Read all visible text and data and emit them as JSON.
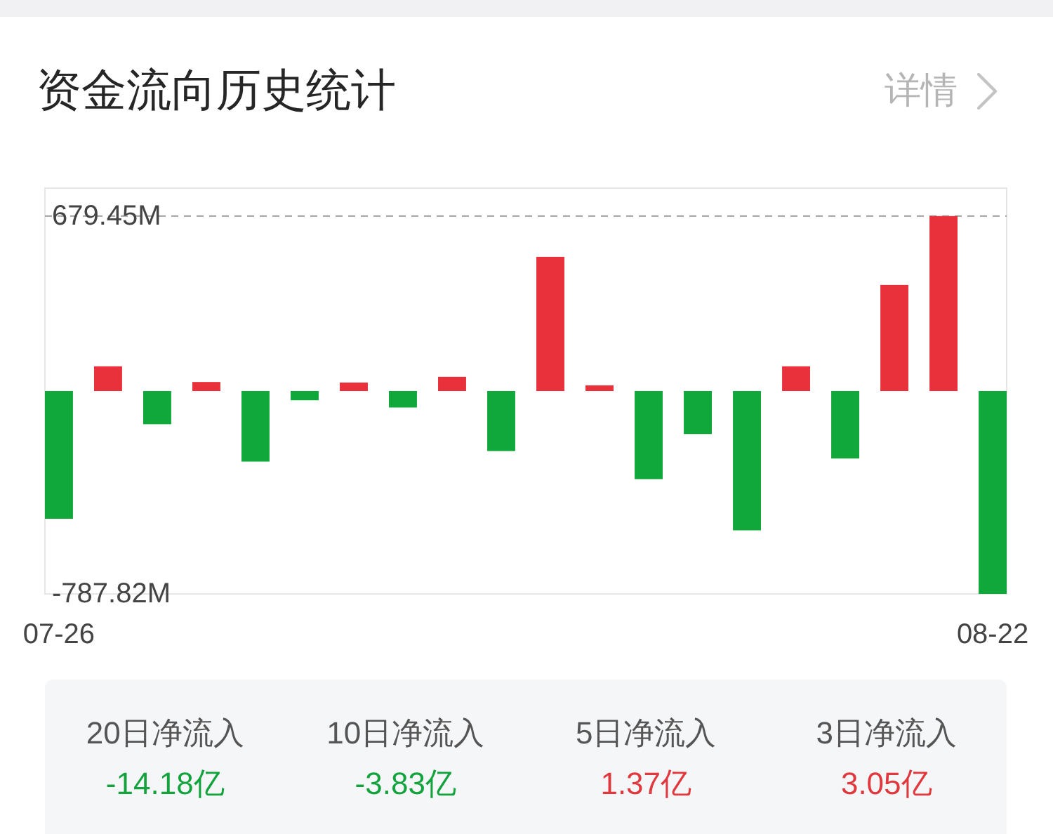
{
  "chart_data": [
    {
      "type": "bar",
      "title": "资金流向历史统计",
      "annotations": [
        "详情"
      ],
      "categories": [
        "07-26",
        null,
        null,
        null,
        null,
        null,
        null,
        null,
        null,
        null,
        null,
        null,
        null,
        null,
        null,
        null,
        null,
        null,
        null,
        "08-22"
      ],
      "values": [
        -496,
        96,
        -129,
        35,
        -274,
        -36,
        33,
        -64,
        55,
        -233,
        521,
        22,
        -342,
        -167,
        -541,
        96,
        -262,
        412,
        679.45,
        -787.82
      ],
      "colors": [
        "#10a83a",
        "#e8313a",
        "#10a83a",
        "#e8313a",
        "#10a83a",
        "#10a83a",
        "#e8313a",
        "#10a83a",
        "#e8313a",
        "#10a83a",
        "#e8313a",
        "#e8313a",
        "#10a83a",
        "#10a83a",
        "#10a83a",
        "#e8313a",
        "#10a83a",
        "#e8313a",
        "#e8313a",
        "#10a83a"
      ],
      "ylim": [
        -787.82,
        787.82
      ],
      "yticks": [
        {
          "value": 679.45,
          "label": "679.45M"
        },
        {
          "value": -787.82,
          "label": "-787.82M"
        }
      ],
      "ref_lines": [
        {
          "axis": "y",
          "value": 679.45,
          "color": "#9a9a9a",
          "line_style": "dashed"
        }
      ]
    },
    {
      "type": "other",
      "annotations": [
        "20日净流入",
        "-14.18亿",
        "10日净流入",
        "-3.83亿",
        "5日净流入",
        "1.37亿",
        "3日净流入",
        "3.05亿"
      ],
      "colors": [
        "#555555",
        "#12a33c",
        "#555555",
        "#12a33c",
        "#555555",
        "#e0383d",
        "#555555",
        "#e0383d"
      ]
    }
  ]
}
